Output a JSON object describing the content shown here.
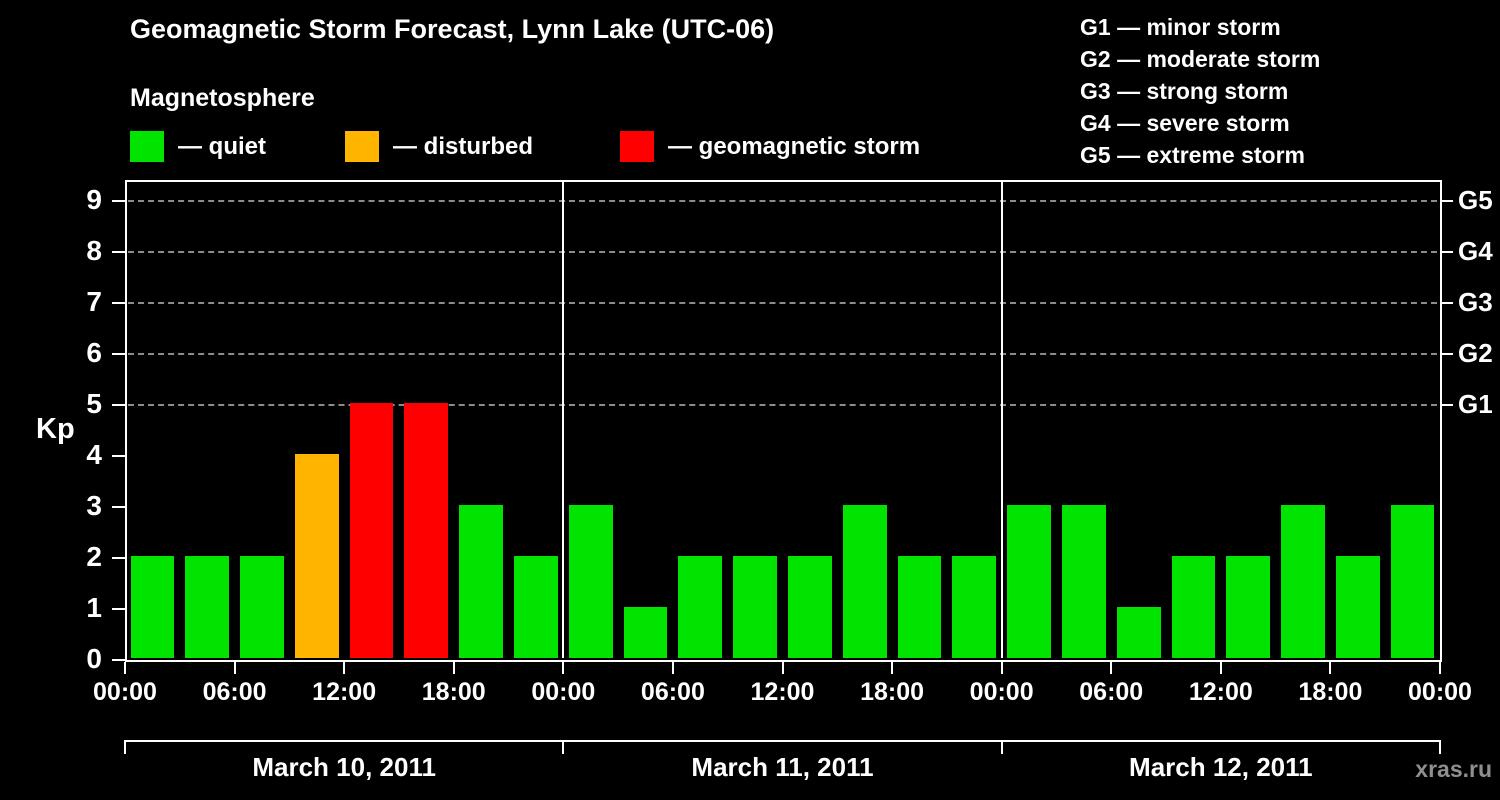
{
  "title": "Geomagnetic Storm Forecast, Lynn Lake (UTC-06)",
  "legend": {
    "heading": "Magnetosphere",
    "items": [
      {
        "name": "quiet",
        "label": "— quiet",
        "color": "#00e400"
      },
      {
        "name": "disturbed",
        "label": "— disturbed",
        "color": "#ffb400"
      },
      {
        "name": "storm",
        "label": "— geomagnetic storm",
        "color": "#ff0000"
      }
    ]
  },
  "storm_scale_legend": [
    "G1 — minor storm",
    "G2 — moderate storm",
    "G3 — strong storm",
    "G4 — severe storm",
    "G5 — extreme storm"
  ],
  "watermark": "xras.ru",
  "chart_data": {
    "type": "bar",
    "title": "Geomagnetic Storm Forecast, Lynn Lake (UTC-06)",
    "ylabel": "Kp",
    "ylim": [
      0,
      9
    ],
    "yticks": [
      0,
      1,
      2,
      3,
      4,
      5,
      6,
      7,
      8,
      9
    ],
    "gridlines_at": [
      5,
      6,
      7,
      8,
      9
    ],
    "grid": "dashed horizontal at storm levels only",
    "legend_position": "top",
    "right_axis_labels": [
      {
        "kp": 5,
        "label": "G1"
      },
      {
        "kp": 6,
        "label": "G2"
      },
      {
        "kp": 7,
        "label": "G3"
      },
      {
        "kp": 8,
        "label": "G4"
      },
      {
        "kp": 9,
        "label": "G5"
      }
    ],
    "x_tick_labels_per_day": [
      "00:00",
      "06:00",
      "12:00",
      "18:00"
    ],
    "x_final_tick_label": "00:00",
    "bar_interval_hours": 3,
    "color_rule": {
      "quiet_kp_max": 3,
      "disturbed_kp": 4,
      "storm_kp_min": 5
    },
    "days": [
      {
        "date": "March 10, 2011",
        "values": [
          2,
          2,
          2,
          4,
          5,
          5,
          3,
          2
        ]
      },
      {
        "date": "March 11, 2011",
        "values": [
          3,
          1,
          2,
          2,
          2,
          3,
          2,
          2
        ]
      },
      {
        "date": "March 12, 2011",
        "values": [
          3,
          3,
          1,
          2,
          2,
          3,
          2,
          3
        ]
      }
    ]
  }
}
